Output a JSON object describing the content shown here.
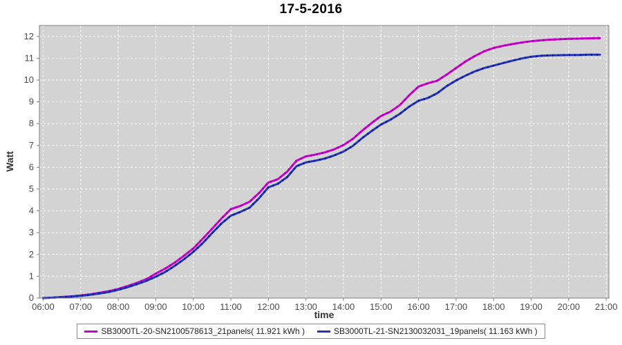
{
  "title": "17-5-2016",
  "colors": {
    "plot_background": "#d3d3d3",
    "plot_border": "#7f7f7f",
    "gridline": "#ffffff",
    "tick_label": "#4a4a4a",
    "axis_label": "#333333",
    "series1": "#cc00cc",
    "series1_dark": "#a000a8",
    "series2": "#2233bb",
    "series2_dark": "#101d88"
  },
  "chart_data": {
    "type": "line",
    "title": "17-5-2016",
    "xlabel": "time",
    "ylabel": "Watt",
    "x_ticks": [
      "06:00",
      "07:00",
      "08:00",
      "09:00",
      "10:00",
      "11:00",
      "12:00",
      "13:00",
      "14:00",
      "15:00",
      "16:00",
      "17:00",
      "18:00",
      "19:00",
      "20:00",
      "21:00"
    ],
    "y_ticks": [
      0,
      1,
      2,
      3,
      4,
      5,
      6,
      7,
      8,
      9,
      10,
      11,
      12
    ],
    "xlim_hours": [
      5.9,
      21.07
    ],
    "ylim": [
      0,
      12.5
    ],
    "grid": true,
    "legend_position": "bottom",
    "x": [
      "06:00",
      "06:15",
      "06:30",
      "06:45",
      "07:00",
      "07:15",
      "07:30",
      "07:45",
      "08:00",
      "08:15",
      "08:30",
      "08:45",
      "09:00",
      "09:15",
      "09:30",
      "09:45",
      "10:00",
      "10:15",
      "10:30",
      "10:45",
      "11:00",
      "11:15",
      "11:30",
      "11:45",
      "12:00",
      "12:15",
      "12:30",
      "12:45",
      "13:00",
      "13:15",
      "13:30",
      "13:45",
      "14:00",
      "14:15",
      "14:30",
      "14:45",
      "15:00",
      "15:15",
      "15:30",
      "15:45",
      "16:00",
      "16:15",
      "16:30",
      "16:45",
      "17:00",
      "17:15",
      "17:30",
      "17:45",
      "18:00",
      "18:15",
      "18:30",
      "18:45",
      "19:00",
      "19:15",
      "19:30",
      "19:45",
      "20:00",
      "20:15",
      "20:30",
      "20:45",
      "20:50"
    ],
    "series": [
      {
        "name": "SB3000TL-20-SN2100578613_21panels( 11.921 kWh )",
        "total_kwh": "11.921",
        "color": "#cc00cc",
        "values": [
          0.0,
          0.02,
          0.05,
          0.08,
          0.12,
          0.17,
          0.24,
          0.32,
          0.42,
          0.55,
          0.7,
          0.87,
          1.12,
          1.35,
          1.62,
          1.94,
          2.28,
          2.72,
          3.18,
          3.65,
          4.08,
          4.22,
          4.42,
          4.82,
          5.3,
          5.45,
          5.8,
          6.3,
          6.5,
          6.58,
          6.68,
          6.82,
          7.02,
          7.3,
          7.68,
          8.03,
          8.35,
          8.55,
          8.85,
          9.3,
          9.7,
          9.85,
          9.97,
          10.25,
          10.55,
          10.85,
          11.1,
          11.32,
          11.47,
          11.57,
          11.65,
          11.72,
          11.78,
          11.82,
          11.85,
          11.87,
          11.89,
          11.9,
          11.91,
          11.92,
          11.92
        ]
      },
      {
        "name": "SB3000TL-21-SN2130032031_19panels( 11.163 kWh )",
        "total_kwh": "11.163",
        "color": "#2233bb",
        "values": [
          0.0,
          0.02,
          0.04,
          0.07,
          0.1,
          0.15,
          0.21,
          0.28,
          0.38,
          0.5,
          0.64,
          0.79,
          0.98,
          1.2,
          1.47,
          1.78,
          2.12,
          2.52,
          2.98,
          3.42,
          3.78,
          3.95,
          4.15,
          4.58,
          5.08,
          5.24,
          5.55,
          6.05,
          6.22,
          6.3,
          6.4,
          6.54,
          6.72,
          6.98,
          7.34,
          7.66,
          7.96,
          8.18,
          8.45,
          8.78,
          9.05,
          9.18,
          9.4,
          9.72,
          9.98,
          10.2,
          10.4,
          10.55,
          10.66,
          10.78,
          10.89,
          10.99,
          11.07,
          11.11,
          11.13,
          11.14,
          11.15,
          11.15,
          11.16,
          11.16,
          11.16
        ]
      }
    ]
  }
}
